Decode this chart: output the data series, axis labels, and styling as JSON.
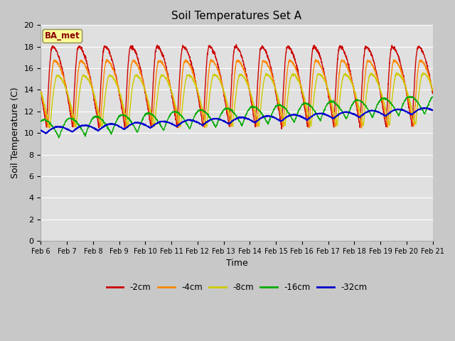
{
  "title": "Soil Temperatures Set A",
  "xlabel": "Time",
  "ylabel": "Soil Temperature (C)",
  "ylim": [
    0,
    20
  ],
  "n_days": 15,
  "background_color": "#e0e0e0",
  "fig_color": "#c8c8c8",
  "grid_color": "#ffffff",
  "annotation_text": "BA_met",
  "annotation_bg": "#ffff99",
  "annotation_border": "#999966",
  "legend_entries": [
    "-2cm",
    "-4cm",
    "-8cm",
    "-16cm",
    "-32cm"
  ],
  "legend_colors": [
    "#cc0000",
    "#ff8800",
    "#cccc00",
    "#00aa00",
    "#0000cc"
  ],
  "x_tick_labels": [
    "Feb 6",
    "Feb 7",
    "Feb 8",
    "Feb 9",
    "Feb 10",
    "Feb 11",
    "Feb 12",
    "Feb 13",
    "Feb 14",
    "Feb 15",
    "Feb 16",
    "Feb 17",
    "Feb 18",
    "Feb 19",
    "Feb 20",
    "Feb 21"
  ]
}
